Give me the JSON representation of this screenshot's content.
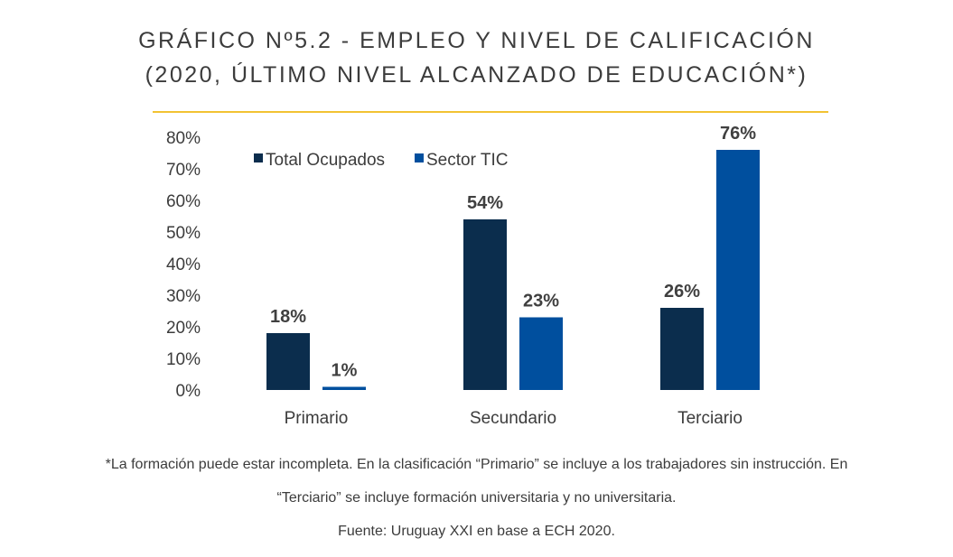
{
  "title_line1": "GRÁFICO Nº5.2 - EMPLEO Y NIVEL DE CALIFICACIÓN",
  "title_line2": "(2020, ÚLTIMO NIVEL ALCANZADO DE EDUCACIÓN*)",
  "colors": {
    "rule": "#f2c233",
    "total": "#0b2d4d",
    "tic": "#004f9e",
    "text": "#3c3c3c"
  },
  "chart_data": {
    "type": "bar",
    "categories": [
      "Primario",
      "Secundario",
      "Terciario"
    ],
    "series": [
      {
        "name": "Total Ocupados",
        "values": [
          18,
          54,
          26
        ],
        "labels": [
          "18%",
          "54%",
          "26%"
        ]
      },
      {
        "name": "Sector TIC",
        "values": [
          1,
          23,
          76
        ],
        "labels": [
          "1%",
          "23%",
          "76%"
        ]
      }
    ],
    "ylim": [
      0,
      80
    ],
    "yticks": [
      "0%",
      "10%",
      "20%",
      "30%",
      "40%",
      "50%",
      "60%",
      "70%",
      "80%"
    ],
    "legend_position": "top-left",
    "grid": false
  },
  "footnote_line1": "*La formación puede estar incompleta. En la clasificación “Primario” se incluye a los trabajadores sin instrucción. En",
  "footnote_line2": "“Terciario” se incluye formación universitaria y no universitaria.",
  "source": "Fuente: Uruguay XXI en base a ECH 2020."
}
